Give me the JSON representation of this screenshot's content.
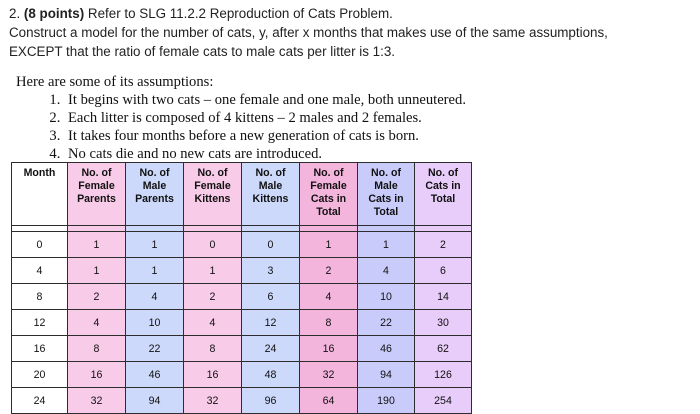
{
  "problem": {
    "number": "2.",
    "points": "(8 points)",
    "ref": "Refer to SLG 11.2.2 Reproduction of Cats Problem.",
    "line2": "Construct a model for the number of cats, y, after x months that makes use of the same assumptions,",
    "line3": "EXCEPT that the ratio of female cats to male cats per litter is 1:3."
  },
  "assumptions": {
    "intro": "Here are some of its assumptions:",
    "items": [
      "It begins with two cats – one female and one male, both unneutered.",
      "Each litter is composed of 4 kittens – 2 males and 2 females.",
      "It takes four months before a new generation of cats is born.",
      "No cats die and no new cats are introduced."
    ]
  },
  "table": {
    "headers": [
      [
        "Month"
      ],
      [
        "No. of",
        "Female",
        "Parents"
      ],
      [
        "No. of",
        "Male",
        "Parents"
      ],
      [
        "No. of",
        "Female",
        "Kittens"
      ],
      [
        "No. of",
        "Male",
        "Kittens"
      ],
      [
        "No. of",
        "Female",
        "Cats in",
        "Total"
      ],
      [
        "No. of",
        "Male",
        "Cats in",
        "Total"
      ],
      [
        "No. of",
        "Cats in",
        "Total"
      ]
    ],
    "rows": [
      [
        "0",
        "1",
        "1",
        "0",
        "0",
        "1",
        "1",
        "2"
      ],
      [
        "4",
        "1",
        "1",
        "1",
        "3",
        "2",
        "4",
        "6"
      ],
      [
        "8",
        "2",
        "4",
        "2",
        "6",
        "4",
        "10",
        "14"
      ],
      [
        "12",
        "4",
        "10",
        "4",
        "12",
        "8",
        "22",
        "30"
      ],
      [
        "16",
        "8",
        "22",
        "8",
        "24",
        "16",
        "46",
        "62"
      ],
      [
        "20",
        "16",
        "46",
        "16",
        "48",
        "32",
        "94",
        "126"
      ],
      [
        "24",
        "32",
        "94",
        "32",
        "96",
        "64",
        "190",
        "254"
      ]
    ],
    "column_colors": [
      "#ffffff",
      "#f8cce8",
      "#cdd9fb",
      "#f8cce8",
      "#cdd9fb",
      "#f4b5dd",
      "#c9ccfb",
      "#e8ccfa"
    ]
  }
}
